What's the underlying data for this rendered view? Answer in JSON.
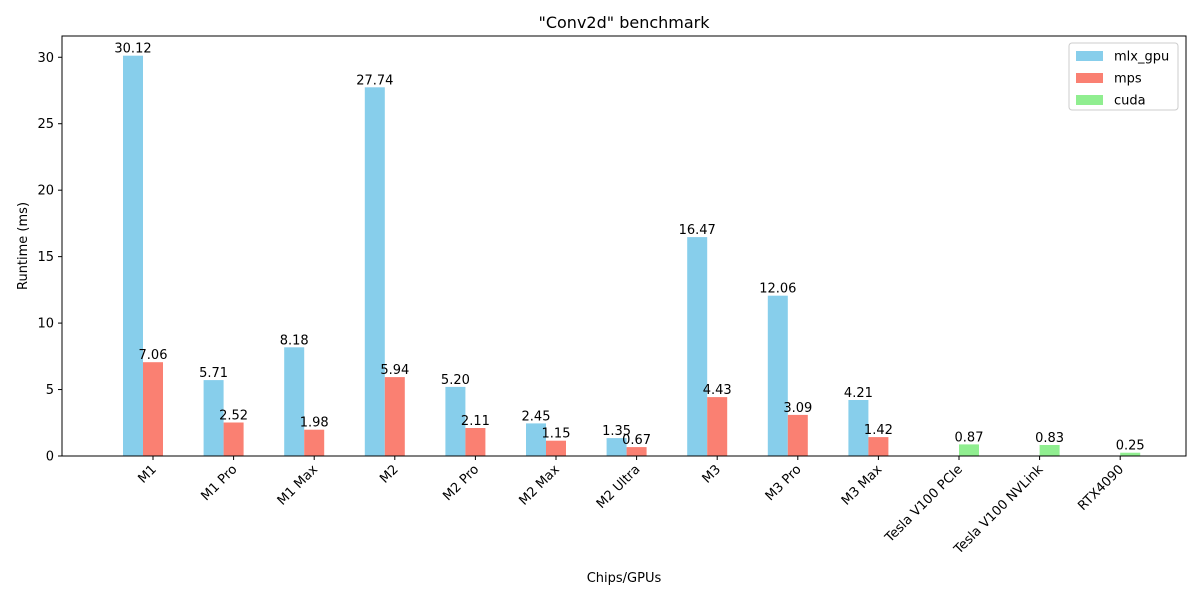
{
  "chart_data": {
    "type": "bar",
    "title": "\"Conv2d\" benchmark",
    "xlabel": "Chips/GPUs",
    "ylabel": "Runtime (ms)",
    "ylim": [
      0,
      31.6
    ],
    "yticks": [
      0,
      5,
      10,
      15,
      20,
      25,
      30
    ],
    "grid": false,
    "legend_position": "top-right",
    "categories": [
      "M1",
      "M1 Pro",
      "M1 Max",
      "M2",
      "M2 Pro",
      "M2 Max",
      "M2 Ultra",
      "M3",
      "M3 Pro",
      "M3 Max",
      "Tesla V100 PCIe",
      "Tesla V100 NVLink",
      "RTX4090"
    ],
    "series": [
      {
        "name": "mlx_gpu",
        "color": "#87ceeb",
        "values": [
          30.12,
          5.71,
          8.18,
          27.74,
          5.2,
          2.45,
          1.35,
          16.47,
          12.06,
          4.21,
          null,
          null,
          null
        ],
        "labels": [
          "30.12",
          "5.71",
          "8.18",
          "27.74",
          "5.20",
          "2.45",
          "1.35",
          "16.47",
          "12.06",
          "4.21",
          null,
          null,
          null
        ]
      },
      {
        "name": "mps",
        "color": "#fa8072",
        "values": [
          7.06,
          2.52,
          1.98,
          5.94,
          2.11,
          1.15,
          0.67,
          4.43,
          3.09,
          1.42,
          null,
          null,
          null
        ],
        "labels": [
          "7.06",
          "2.52",
          "1.98",
          "5.94",
          "2.11",
          "1.15",
          "0.67",
          "4.43",
          "3.09",
          "1.42",
          null,
          null,
          null
        ]
      },
      {
        "name": "cuda",
        "color": "#90ee90",
        "values": [
          null,
          null,
          null,
          null,
          null,
          null,
          null,
          null,
          null,
          null,
          0.87,
          0.83,
          0.25
        ],
        "labels": [
          null,
          null,
          null,
          null,
          null,
          null,
          null,
          null,
          null,
          null,
          "0.87",
          "0.83",
          "0.25"
        ]
      }
    ]
  }
}
